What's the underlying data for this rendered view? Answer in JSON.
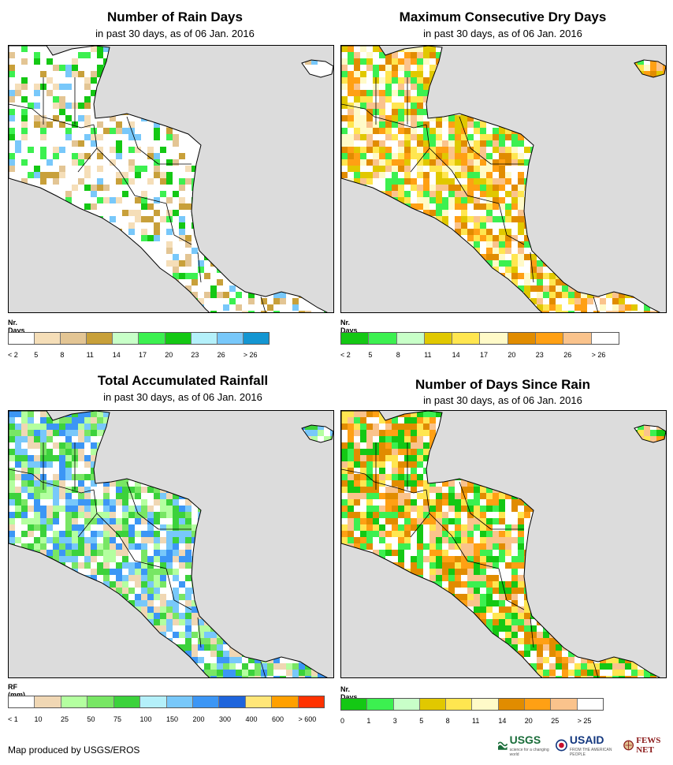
{
  "panels": [
    {
      "id": "rain-days",
      "title": "Number of Rain Days",
      "subtitle": "in past 30 days, as of 06 Jan. 2016",
      "legend_title": "Nr. Days",
      "legend_colors": [
        "#ffffff",
        "#f5deb8",
        "#e3c594",
        "#c8a03a",
        "#c8ffc8",
        "#3cf050",
        "#14c814",
        "#b4f0fa",
        "#78c8fa",
        "#1496d2"
      ],
      "legend_labels": [
        "< 2",
        "5",
        "8",
        "11",
        "14",
        "17",
        "20",
        "23",
        "26",
        "> 26"
      ],
      "map_palette": [
        "#ffffff",
        "#f5deb8",
        "#e3c594",
        "#c8a03a",
        "#3cf050",
        "#14c814",
        "#78c8fa"
      ]
    },
    {
      "id": "dry-days",
      "title": "Maximum Consecutive Dry Days",
      "subtitle": "in past 30 days, as of 06 Jan. 2016",
      "legend_title": "Nr. Days",
      "legend_colors": [
        "#14c814",
        "#3cf050",
        "#c8ffc8",
        "#e1c800",
        "#ffe650",
        "#fffac8",
        "#e18c00",
        "#ffa014",
        "#fac38c",
        "#ffffff"
      ],
      "legend_labels": [
        "< 2",
        "5",
        "8",
        "11",
        "14",
        "17",
        "20",
        "23",
        "26",
        "> 26"
      ],
      "map_palette": [
        "#ffffff",
        "#fffac8",
        "#ffe650",
        "#e1c800",
        "#e18c00",
        "#ffa014",
        "#fac38c",
        "#3cf050"
      ]
    },
    {
      "id": "rainfall",
      "title": "Total Accumulated Rainfall",
      "subtitle": "in past 30 days, as of 06 Jan. 2016",
      "legend_title": "RF (mm)",
      "legend_colors": [
        "#ffffff",
        "#f0d7b4",
        "#b4ffa0",
        "#78e664",
        "#3cd23c",
        "#b4f0fa",
        "#78c8fa",
        "#3c96f5",
        "#1e64dc",
        "#ffe678",
        "#ffa000",
        "#ff3200"
      ],
      "legend_labels": [
        "< 1",
        "10",
        "25",
        "50",
        "75",
        "100",
        "150",
        "200",
        "300",
        "400",
        "600",
        "> 600"
      ],
      "map_palette": [
        "#ffffff",
        "#f0d7b4",
        "#b4ffa0",
        "#78e664",
        "#3cd23c",
        "#78c8fa",
        "#3c96f5"
      ]
    },
    {
      "id": "days-since-rain",
      "title": "Number of Days Since Rain",
      "subtitle": "in past 30 days, as of 06 Jan. 2016",
      "legend_title": "Nr. Days",
      "legend_colors": [
        "#14c814",
        "#3cf050",
        "#c8ffc8",
        "#e1c800",
        "#ffe650",
        "#fffac8",
        "#e18c00",
        "#ffa014",
        "#fac38c",
        "#ffffff"
      ],
      "legend_labels": [
        "0",
        "1",
        "3",
        "5",
        "8",
        "11",
        "14",
        "20",
        "25",
        "> 25"
      ],
      "map_palette": [
        "#ffffff",
        "#14c814",
        "#3cf050",
        "#ffa014",
        "#e18c00",
        "#fac38c",
        "#ffe650"
      ]
    }
  ],
  "footer": {
    "credit": "Map produced by USGS/EROS",
    "logos": [
      "USGS",
      "USAID",
      "FEWS NET"
    ],
    "usgs_tagline": "science for a changing world",
    "usaid_tagline": "FROM THE AMERICAN PEOPLE"
  }
}
